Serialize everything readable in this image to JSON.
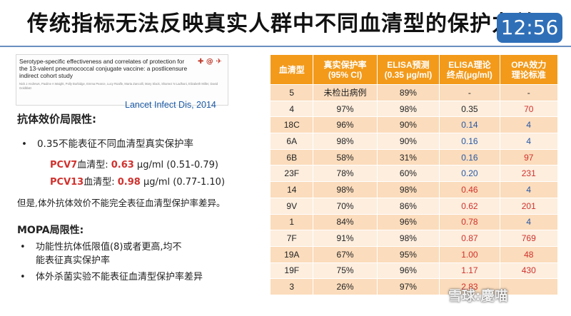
{
  "slide": {
    "title": "传统指标无法反映真实人群中不同血清型的保护力差异",
    "clock": "12:56"
  },
  "citation": {
    "title": "Serotype-specific effectiveness and correlates of protection for the 13-valent pneumococcal conjugate vaccine: a postlicensure indirect cohort study",
    "authors": "Nick J Andrews, Pauline A Waight, Polly Burbidge, Emma Pearce, Lucy Roalfe, Marta Zancolli, Mary Slack, Shamez N Ladhani, Elizabeth Miller, David Goldblatt",
    "journal": "Lancet Infect Dis, 2014",
    "icon_names": [
      "crossmark-icon",
      "at-icon",
      "open-access-icon"
    ]
  },
  "left": {
    "heading1": "抗体效价局限性:",
    "bullet1": "0.35不能表征不同血清型真实保护率",
    "pcv7": {
      "label": "PCV7",
      "suffix": "血清型:",
      "value": "0.63",
      "rest": " μg/ml (0.51-0.79)"
    },
    "pcv13": {
      "label": "PCV13",
      "suffix": "血清型:",
      "value": "0.98",
      "rest": " μg/ml (0.77-1.10)"
    },
    "note": "但是,体外抗体效价不能完全表征血清型保护率差异。",
    "heading2": "MOPA局限性:",
    "mopa1_line1": "功能性抗体低限值(8)或者更高,均不",
    "mopa1_line2": "能表征真实保护率",
    "mopa2": "体外杀菌实验不能表征血清型保护率差异",
    "bullet_dot": "•"
  },
  "table": {
    "headers": [
      [
        "血清型"
      ],
      [
        "真实保护率",
        "(95% CI)"
      ],
      [
        "ELISA预测",
        "(0.35 μg/ml)"
      ],
      [
        "ELISA理论",
        "终点(μg/ml)"
      ],
      [
        "OPA效力",
        "理论标准"
      ]
    ],
    "rows": [
      {
        "serotype": "5",
        "protection": "未检出病例",
        "elisa": "89%",
        "endpoint": "-",
        "opa": "-",
        "endpoint_color": "dark",
        "opa_color": "dark"
      },
      {
        "serotype": "4",
        "protection": "97%",
        "elisa": "98%",
        "endpoint": "0.35",
        "opa": "70",
        "endpoint_color": "dark",
        "opa_color": "red"
      },
      {
        "serotype": "18C",
        "protection": "96%",
        "elisa": "90%",
        "endpoint": "0.14",
        "opa": "4",
        "endpoint_color": "blue",
        "opa_color": "blue"
      },
      {
        "serotype": "6A",
        "protection": "98%",
        "elisa": "90%",
        "endpoint": "0.16",
        "opa": "4",
        "endpoint_color": "blue",
        "opa_color": "blue"
      },
      {
        "serotype": "6B",
        "protection": "58%",
        "elisa": "31%",
        "endpoint": "0.16",
        "opa": "97",
        "endpoint_color": "blue",
        "opa_color": "red"
      },
      {
        "serotype": "23F",
        "protection": "78%",
        "elisa": "60%",
        "endpoint": "0.20",
        "opa": "231",
        "endpoint_color": "blue",
        "opa_color": "red"
      },
      {
        "serotype": "14",
        "protection": "98%",
        "elisa": "98%",
        "endpoint": "0.46",
        "opa": "4",
        "endpoint_color": "red",
        "opa_color": "blue"
      },
      {
        "serotype": "9V",
        "protection": "70%",
        "elisa": "86%",
        "endpoint": "0.62",
        "opa": "201",
        "endpoint_color": "red",
        "opa_color": "red"
      },
      {
        "serotype": "1",
        "protection": "84%",
        "elisa": "96%",
        "endpoint": "0.78",
        "opa": "4",
        "endpoint_color": "red",
        "opa_color": "blue"
      },
      {
        "serotype": "7F",
        "protection": "91%",
        "elisa": "98%",
        "endpoint": "0.87",
        "opa": "769",
        "endpoint_color": "red",
        "opa_color": "red"
      },
      {
        "serotype": "19A",
        "protection": "67%",
        "elisa": "95%",
        "endpoint": "1.00",
        "opa": "48",
        "endpoint_color": "red",
        "opa_color": "red"
      },
      {
        "serotype": "19F",
        "protection": "75%",
        "elisa": "96%",
        "endpoint": "1.17",
        "opa": "430",
        "endpoint_color": "red",
        "opa_color": "red"
      },
      {
        "serotype": "3",
        "protection": "26%",
        "elisa": "97%",
        "endpoint": "2.83",
        "opa": "",
        "endpoint_color": "red",
        "opa_color": "red"
      }
    ]
  },
  "watermark": "雪球:慶喵",
  "colors": {
    "header_bg": "#f39a1a",
    "row_odd": "#fbdcbc",
    "row_even": "#fdeede",
    "red": "#d0312d",
    "blue": "#2857a4",
    "clock_bg": "#2f6fb8"
  }
}
